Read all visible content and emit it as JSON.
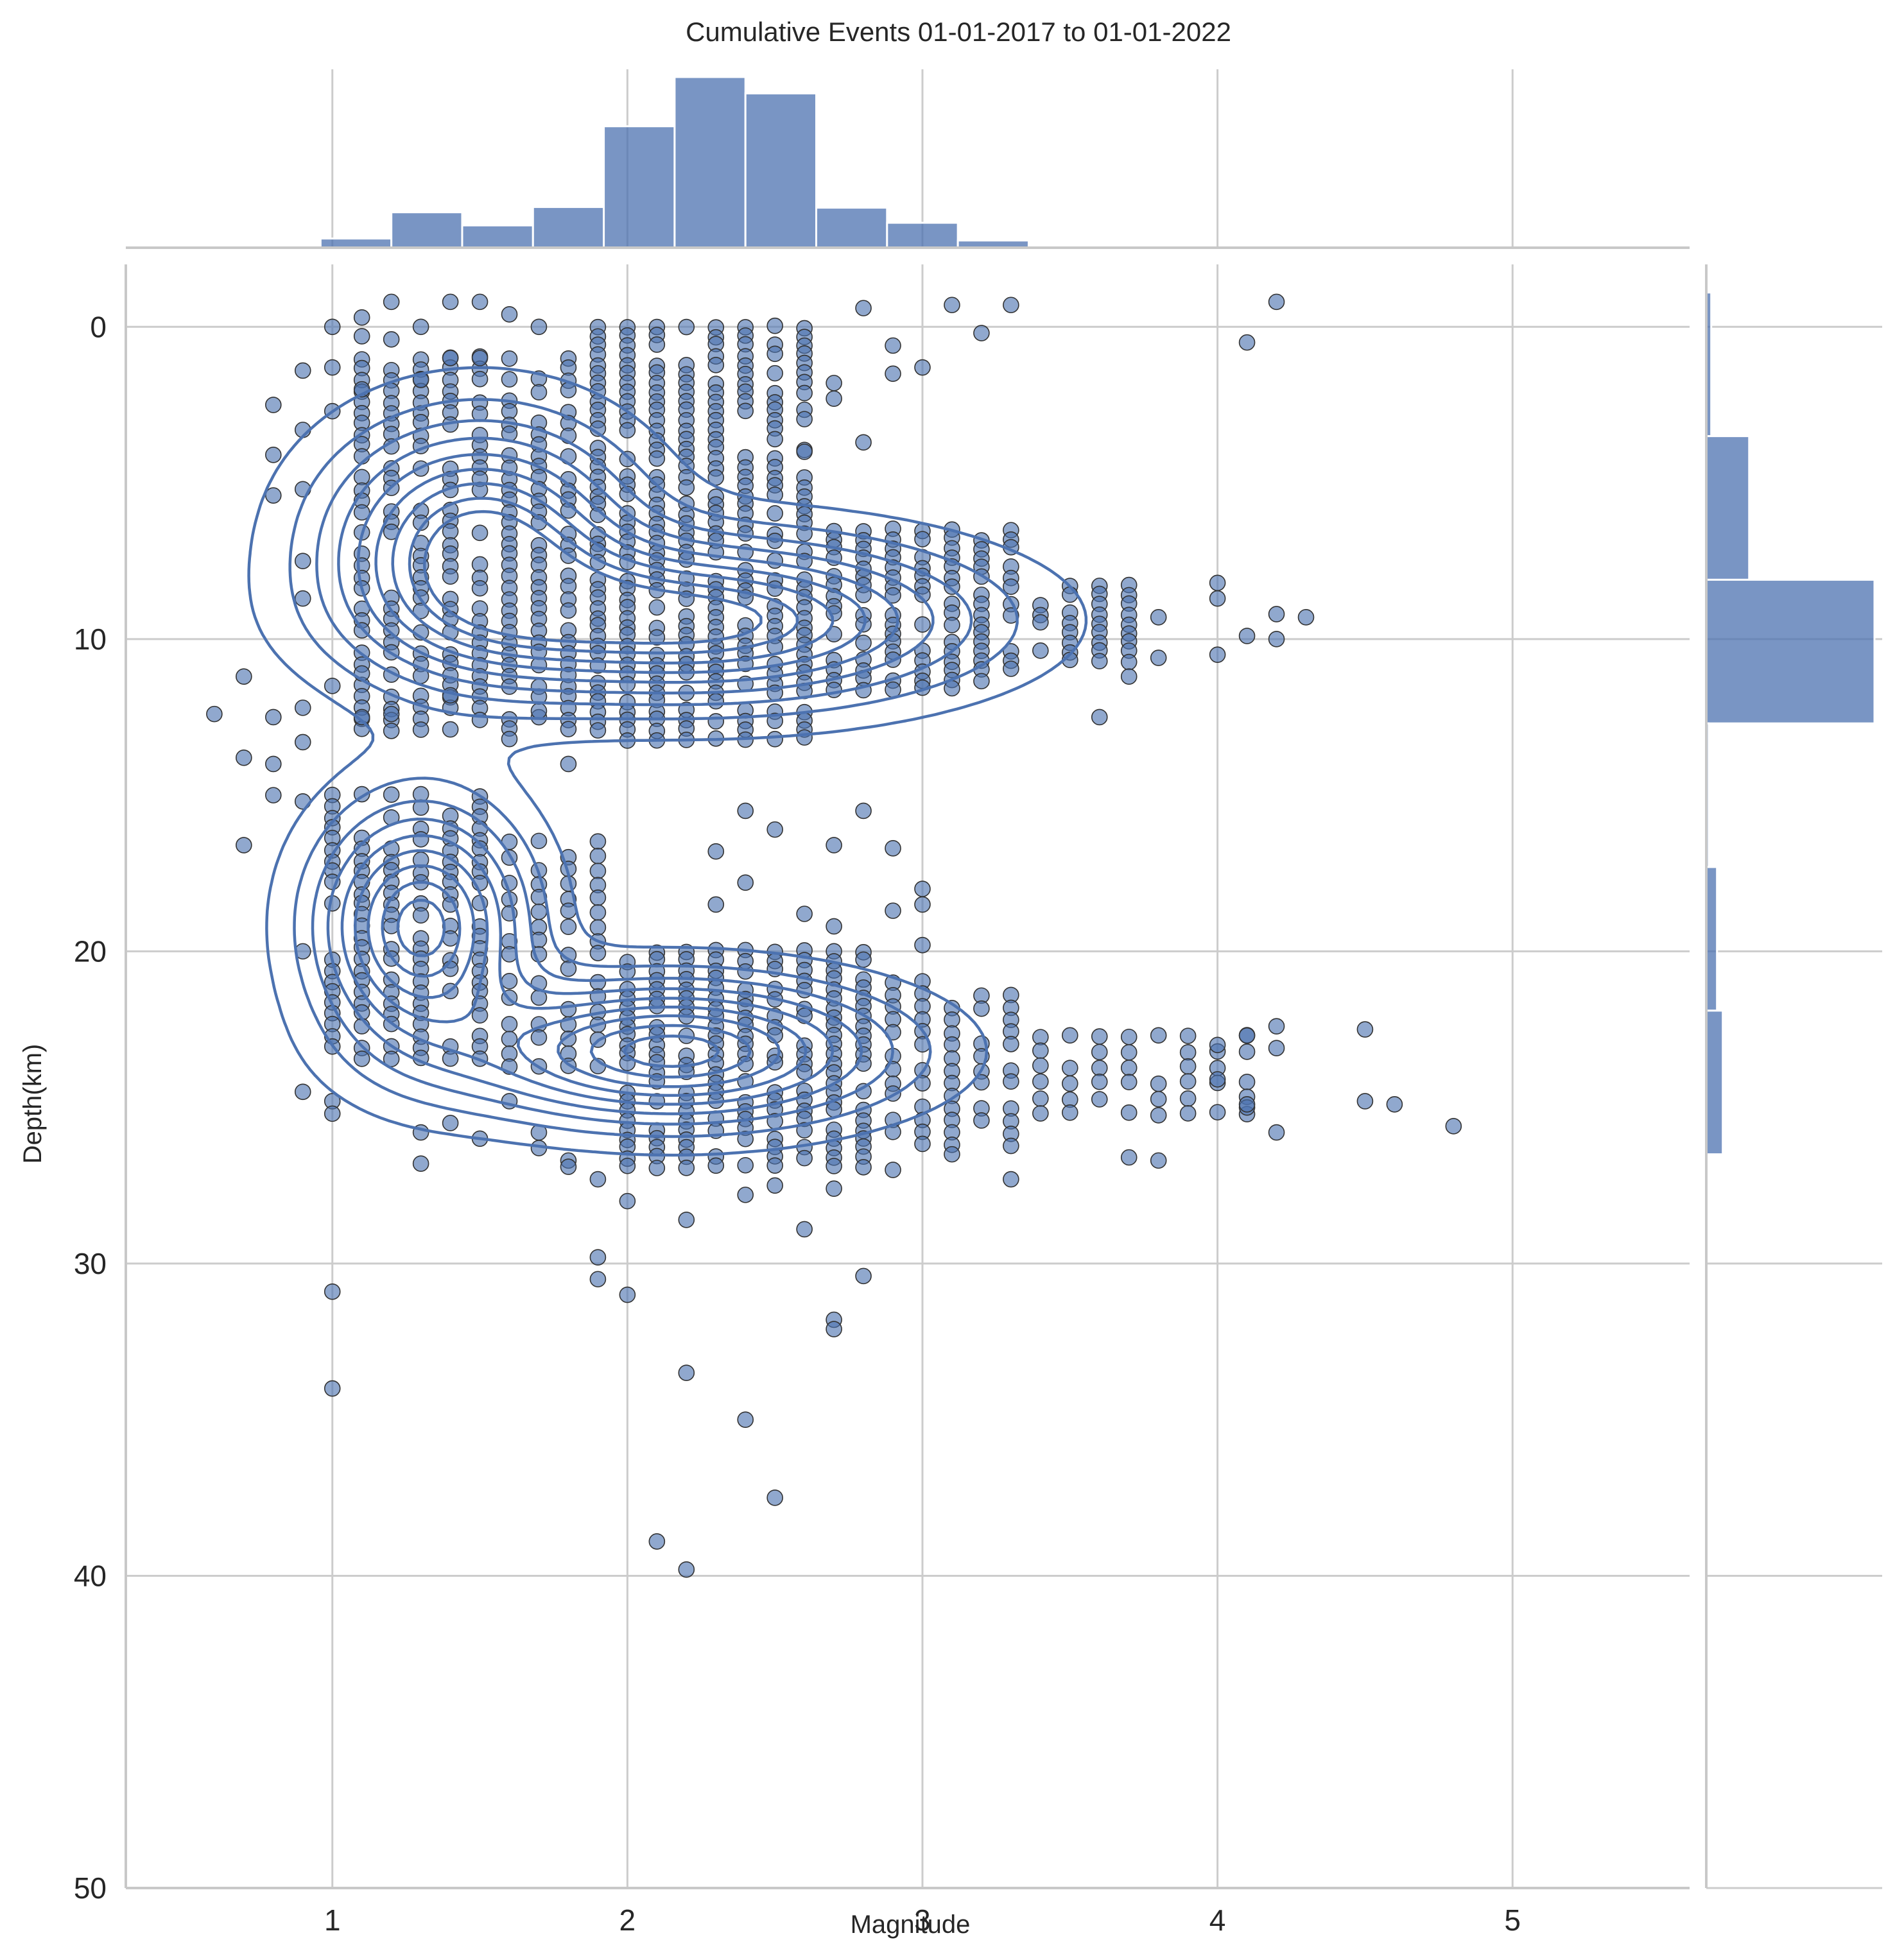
{
  "chart_data": {
    "type": "scatter",
    "title": "Cumulative Events 01-01-2017 to 01-01-2022",
    "xlabel": "Magnitude",
    "ylabel": "Depth(km)",
    "xlim": [
      0.3,
      5.6
    ],
    "ylim": [
      50,
      -2
    ],
    "y_inverted": true,
    "x_ticks": [
      1,
      2,
      3,
      4,
      5
    ],
    "y_ticks": [
      0,
      10,
      20,
      30,
      40,
      50
    ],
    "grid": true,
    "colors": {
      "marker": "#4c72b0",
      "marker_edge": "#333333",
      "contour": "#4c72b0",
      "hist": "#4c72b0",
      "grid": "#cccccc",
      "spine": "#c8c8c8"
    },
    "marginal_x": {
      "type": "histogram",
      "bin_edges": [
        0.96,
        1.2,
        1.44,
        1.68,
        1.92,
        2.16,
        2.4,
        2.64,
        2.88,
        3.12,
        3.36,
        3.6,
        3.84
      ],
      "counts": [
        28,
        108,
        68,
        124,
        370,
        520,
        470,
        122,
        76,
        22,
        6,
        3
      ]
    },
    "marginal_y": {
      "type": "histogram",
      "bin_edges": [
        -1.1,
        3.5,
        8.1,
        12.7,
        17.3,
        21.9,
        26.5
      ],
      "counts": [
        30,
        260,
        1020,
        15,
        65,
        100
      ]
    },
    "contours": [
      {
        "cluster": "upper-left",
        "center": [
          1.5,
          7.0
        ],
        "sx": 0.32,
        "sy": 2.4
      },
      {
        "cluster": "upper-right",
        "center": [
          2.25,
          9.4
        ],
        "sx": 0.55,
        "sy": 1.6
      },
      {
        "cluster": "lower-left",
        "center": [
          1.3,
          19.2
        ],
        "sx": 0.22,
        "sy": 2.4
      },
      {
        "cluster": "lower-right",
        "center": [
          2.15,
          23.2
        ],
        "sx": 0.45,
        "sy": 1.4
      }
    ],
    "scatter_clusters": [
      {
        "x_values": [
          1.1,
          1.2,
          1.3,
          1.4,
          1.5,
          1.6,
          1.7,
          1.8
        ],
        "y_range": [
          1.0,
          13.0
        ],
        "step": 0.35
      },
      {
        "x_values": [
          1.9,
          2.0,
          2.1,
          2.2,
          2.3,
          2.4,
          2.5,
          2.6
        ],
        "y_range": [
          0.0,
          13.5
        ],
        "step": 0.3
      },
      {
        "x_values": [
          2.7,
          2.8,
          2.9,
          3.0,
          3.1,
          3.2,
          3.3
        ],
        "y_range": [
          6.5,
          11.8
        ],
        "step": 0.3
      },
      {
        "x_values": [
          3.4,
          3.5,
          3.6,
          3.7
        ],
        "y_range": [
          8.3,
          10.8
        ],
        "step": 0.3
      },
      {
        "x_values": [
          1.0,
          1.1,
          1.2,
          1.3,
          1.4,
          1.5
        ],
        "y_range": [
          15.0,
          23.5
        ],
        "step": 0.35
      },
      {
        "x_values": [
          1.6,
          1.7,
          1.8,
          1.9
        ],
        "y_range": [
          16.5,
          24.0
        ],
        "step": 0.45
      },
      {
        "x_values": [
          2.0,
          2.1,
          2.2,
          2.3,
          2.4,
          2.5,
          2.6,
          2.7,
          2.8
        ],
        "y_range": [
          20.0,
          27.0
        ],
        "step": 0.3
      },
      {
        "x_values": [
          2.9,
          3.0,
          3.1,
          3.2,
          3.3
        ],
        "y_range": [
          21.0,
          26.5
        ],
        "step": 0.4
      },
      {
        "x_values": [
          3.4,
          3.5,
          3.6,
          3.7,
          3.8,
          3.9,
          4.0,
          4.1
        ],
        "y_range": [
          22.7,
          25.5
        ],
        "step": 0.5
      }
    ],
    "outliers": [
      [
        0.6,
        12.4
      ],
      [
        0.7,
        11.2
      ],
      [
        0.7,
        13.8
      ],
      [
        0.7,
        16.6
      ],
      [
        0.8,
        2.5
      ],
      [
        0.8,
        4.1
      ],
      [
        0.8,
        5.4
      ],
      [
        0.8,
        12.5
      ],
      [
        0.8,
        14.0
      ],
      [
        0.8,
        15.0
      ],
      [
        0.9,
        1.4
      ],
      [
        0.9,
        3.3
      ],
      [
        0.9,
        5.2
      ],
      [
        0.9,
        7.5
      ],
      [
        0.9,
        8.7
      ],
      [
        0.9,
        12.2
      ],
      [
        0.9,
        13.3
      ],
      [
        0.9,
        15.2
      ],
      [
        0.9,
        20.0
      ],
      [
        0.9,
        24.5
      ],
      [
        1.0,
        0.0
      ],
      [
        1.0,
        1.3
      ],
      [
        1.0,
        2.7
      ],
      [
        1.0,
        11.5
      ],
      [
        1.0,
        24.8
      ],
      [
        1.0,
        25.2
      ],
      [
        1.0,
        30.9
      ],
      [
        1.0,
        34.0
      ],
      [
        1.1,
        -0.3
      ],
      [
        1.1,
        0.3
      ],
      [
        1.1,
        2.0
      ],
      [
        1.1,
        11.1
      ],
      [
        1.1,
        12.5
      ],
      [
        1.2,
        -0.8
      ],
      [
        1.2,
        0.4
      ],
      [
        1.2,
        12.4
      ],
      [
        1.3,
        0.0
      ],
      [
        1.3,
        1.7
      ],
      [
        1.3,
        25.8
      ],
      [
        1.3,
        26.8
      ],
      [
        1.4,
        -0.8
      ],
      [
        1.4,
        1.0
      ],
      [
        1.4,
        11.8
      ],
      [
        1.4,
        25.5
      ],
      [
        1.5,
        -0.8
      ],
      [
        1.5,
        1.0
      ],
      [
        1.5,
        26.0
      ],
      [
        1.6,
        -0.4
      ],
      [
        1.6,
        13.2
      ],
      [
        1.6,
        24.8
      ],
      [
        1.7,
        0.0
      ],
      [
        1.7,
        12.3
      ],
      [
        1.7,
        25.8
      ],
      [
        1.7,
        26.3
      ],
      [
        1.8,
        14.0
      ],
      [
        1.8,
        26.7
      ],
      [
        1.8,
        26.9
      ],
      [
        1.9,
        27.3
      ],
      [
        1.9,
        29.8
      ],
      [
        1.9,
        30.5
      ],
      [
        2.0,
        28.0
      ],
      [
        2.0,
        31.0
      ],
      [
        2.1,
        38.9
      ],
      [
        2.2,
        28.6
      ],
      [
        2.2,
        33.5
      ],
      [
        2.2,
        39.8
      ],
      [
        2.3,
        16.8
      ],
      [
        2.3,
        18.5
      ],
      [
        2.4,
        27.8
      ],
      [
        2.4,
        35.0
      ],
      [
        2.4,
        15.5
      ],
      [
        2.4,
        17.8
      ],
      [
        2.5,
        37.5
      ],
      [
        2.5,
        27.5
      ],
      [
        2.5,
        16.1
      ],
      [
        2.6,
        28.9
      ],
      [
        2.6,
        4.0
      ],
      [
        2.6,
        18.8
      ],
      [
        2.7,
        1.8
      ],
      [
        2.7,
        2.3
      ],
      [
        2.7,
        16.6
      ],
      [
        2.7,
        19.2
      ],
      [
        2.7,
        31.8
      ],
      [
        2.7,
        32.1
      ],
      [
        2.7,
        27.6
      ],
      [
        2.8,
        -0.6
      ],
      [
        2.8,
        3.7
      ],
      [
        2.8,
        15.5
      ],
      [
        2.8,
        30.4
      ],
      [
        2.9,
        0.6
      ],
      [
        2.9,
        1.5
      ],
      [
        2.9,
        16.7
      ],
      [
        2.9,
        18.7
      ],
      [
        2.9,
        27.0
      ],
      [
        3.0,
        1.3
      ],
      [
        3.0,
        18.0
      ],
      [
        3.0,
        19.8
      ],
      [
        3.0,
        18.5
      ],
      [
        3.1,
        -0.7
      ],
      [
        3.1,
        26.5
      ],
      [
        3.2,
        0.2
      ],
      [
        3.3,
        -0.7
      ],
      [
        3.3,
        27.3
      ],
      [
        3.6,
        12.5
      ],
      [
        3.7,
        11.2
      ],
      [
        3.7,
        26.6
      ],
      [
        3.8,
        9.3
      ],
      [
        3.8,
        10.6
      ],
      [
        3.8,
        26.7
      ],
      [
        4.0,
        8.2
      ],
      [
        4.0,
        8.7
      ],
      [
        4.0,
        10.5
      ],
      [
        4.0,
        23.0
      ],
      [
        4.0,
        24.1
      ],
      [
        4.1,
        0.5
      ],
      [
        4.1,
        9.9
      ],
      [
        4.1,
        22.7
      ],
      [
        4.1,
        25.0
      ],
      [
        4.1,
        24.9
      ],
      [
        4.2,
        -0.8
      ],
      [
        4.2,
        9.2
      ],
      [
        4.2,
        10.0
      ],
      [
        4.2,
        22.4
      ],
      [
        4.2,
        23.1
      ],
      [
        4.2,
        25.8
      ],
      [
        4.3,
        9.3
      ],
      [
        4.5,
        22.5
      ],
      [
        4.5,
        24.8
      ],
      [
        4.6,
        24.9
      ],
      [
        4.8,
        25.6
      ]
    ]
  }
}
